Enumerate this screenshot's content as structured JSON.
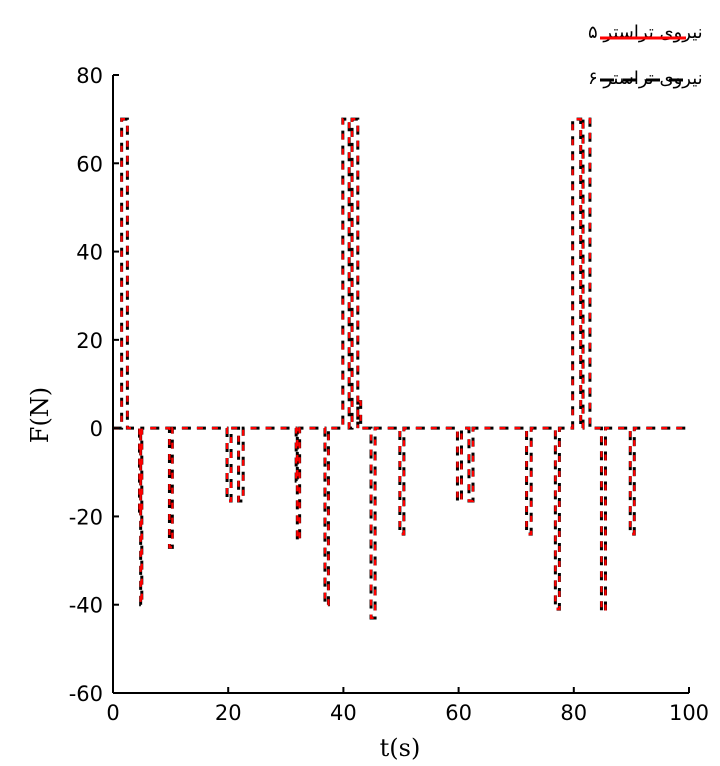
{
  "chart_data": {
    "type": "line",
    "xlabel": "t(s)",
    "ylabel": "F(N)",
    "xlim": [
      0,
      100
    ],
    "ylim": [
      -60,
      80
    ],
    "x_ticks": [
      "0",
      "20",
      "40",
      "60",
      "80",
      "100"
    ],
    "y_ticks": [
      "80",
      "60",
      "40",
      "20",
      "0",
      "-20",
      "-40",
      "-60"
    ],
    "grid": false,
    "legend_position": "top-right",
    "series": [
      {
        "name": "نیروی تراستر ۵",
        "color": "#ff0000",
        "style": "solid",
        "pulses": [
          {
            "start": 1.5,
            "end": 2.5,
            "value": 70
          },
          {
            "start": 4.6,
            "end": 4.8,
            "value": -20
          },
          {
            "start": 4.8,
            "end": 5.0,
            "value": -40
          },
          {
            "start": 9.8,
            "end": 10.3,
            "value": -27
          },
          {
            "start": 19.8,
            "end": 20.5,
            "value": -16.5
          },
          {
            "start": 21.8,
            "end": 22.6,
            "value": -16.5
          },
          {
            "start": 31.8,
            "end": 32.0,
            "value": -12
          },
          {
            "start": 32.0,
            "end": 32.4,
            "value": -25.5
          },
          {
            "start": 36.8,
            "end": 37.4,
            "value": -40
          },
          {
            "start": 39.9,
            "end": 41.0,
            "value": 70
          },
          {
            "start": 41.5,
            "end": 42.5,
            "value": 70
          },
          {
            "start": 42.5,
            "end": 43.0,
            "value": 6
          },
          {
            "start": 44.8,
            "end": 45.5,
            "value": -43
          },
          {
            "start": 49.8,
            "end": 50.5,
            "value": -24
          },
          {
            "start": 59.8,
            "end": 60.5,
            "value": -16.5
          },
          {
            "start": 61.8,
            "end": 62.5,
            "value": -16.5
          },
          {
            "start": 71.8,
            "end": 72.6,
            "value": -24
          },
          {
            "start": 76.8,
            "end": 77.5,
            "value": -41
          },
          {
            "start": 79.8,
            "end": 81.2,
            "value": 70
          },
          {
            "start": 81.6,
            "end": 82.8,
            "value": 70
          },
          {
            "start": 84.8,
            "end": 85.5,
            "value": -41.5
          },
          {
            "start": 89.8,
            "end": 90.5,
            "value": -24
          }
        ]
      },
      {
        "name": "نیروی تراستر ۶",
        "color": "#000000",
        "style": "dashed",
        "pulses": [
          {
            "start": 1.5,
            "end": 2.5,
            "value": 70
          },
          {
            "start": 4.6,
            "end": 4.8,
            "value": -20
          },
          {
            "start": 4.8,
            "end": 5.0,
            "value": -40
          },
          {
            "start": 9.8,
            "end": 10.3,
            "value": -27
          },
          {
            "start": 19.8,
            "end": 20.5,
            "value": -16.5
          },
          {
            "start": 21.8,
            "end": 22.6,
            "value": -16.5
          },
          {
            "start": 31.8,
            "end": 32.0,
            "value": -12
          },
          {
            "start": 32.0,
            "end": 32.4,
            "value": -25.5
          },
          {
            "start": 36.8,
            "end": 37.4,
            "value": -40
          },
          {
            "start": 39.9,
            "end": 41.0,
            "value": 70
          },
          {
            "start": 41.5,
            "end": 42.5,
            "value": 70
          },
          {
            "start": 42.5,
            "end": 43.0,
            "value": 6
          },
          {
            "start": 44.8,
            "end": 45.5,
            "value": -43
          },
          {
            "start": 49.8,
            "end": 50.5,
            "value": -24
          },
          {
            "start": 59.8,
            "end": 60.5,
            "value": -16.5
          },
          {
            "start": 61.8,
            "end": 62.5,
            "value": -16.5
          },
          {
            "start": 71.8,
            "end": 72.6,
            "value": -24
          },
          {
            "start": 76.8,
            "end": 77.5,
            "value": -41
          },
          {
            "start": 79.8,
            "end": 81.2,
            "value": 70
          },
          {
            "start": 81.6,
            "end": 82.8,
            "value": 70
          },
          {
            "start": 84.8,
            "end": 85.5,
            "value": -41.5
          },
          {
            "start": 89.8,
            "end": 90.5,
            "value": -24
          }
        ]
      }
    ]
  }
}
